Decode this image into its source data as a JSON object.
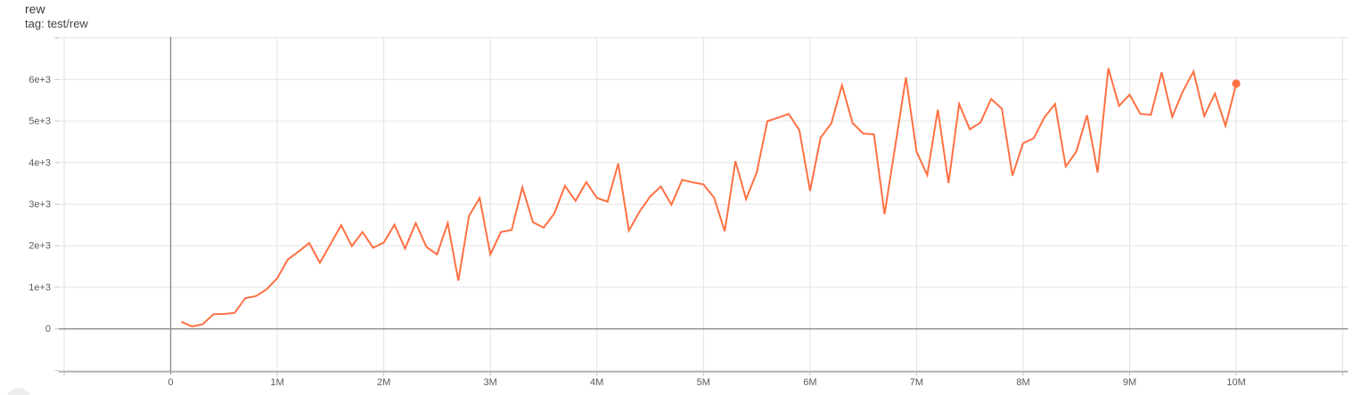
{
  "card": {
    "title": "rew",
    "subtitle": "tag: test/rew"
  },
  "colors": {
    "series": "#ff7043",
    "grid": "#e3e3e3",
    "zero_axis": "#8c8c8c",
    "baseline": "#aeaeae",
    "tick": "#c2c2c2",
    "tick_label": "#5b5b5b"
  },
  "chart_data": {
    "type": "line",
    "title": "rew",
    "tag": "test/rew",
    "legend_position": "none",
    "grid": true,
    "x_axis": {
      "unit": "steps (millions)",
      "range_millions": [
        -1.05,
        11.05
      ],
      "grid_millions": [
        -1,
        0,
        1,
        2,
        3,
        4,
        5,
        6,
        7,
        8,
        9,
        10,
        11
      ],
      "ticks": [
        {
          "value_millions": 0,
          "label": "0"
        },
        {
          "value_millions": 1,
          "label": "1M"
        },
        {
          "value_millions": 2,
          "label": "2M"
        },
        {
          "value_millions": 3,
          "label": "3M"
        },
        {
          "value_millions": 4,
          "label": "4M"
        },
        {
          "value_millions": 5,
          "label": "5M"
        },
        {
          "value_millions": 6,
          "label": "6M"
        },
        {
          "value_millions": 7,
          "label": "7M"
        },
        {
          "value_millions": 8,
          "label": "8M"
        },
        {
          "value_millions": 9,
          "label": "9M"
        },
        {
          "value_millions": 10,
          "label": "10M"
        }
      ]
    },
    "y_axis": {
      "range": [
        -1030,
        7030
      ],
      "grid": [
        -1000,
        0,
        1000,
        2000,
        3000,
        4000,
        5000,
        6000,
        7000
      ],
      "ticks": [
        {
          "value": 0,
          "label": "0"
        },
        {
          "value": 1000,
          "label": "1e+3"
        },
        {
          "value": 2000,
          "label": "2e+3"
        },
        {
          "value": 3000,
          "label": "3e+3"
        },
        {
          "value": 4000,
          "label": "4e+3"
        },
        {
          "value": 5000,
          "label": "5e+3"
        },
        {
          "value": 6000,
          "label": "6e+3"
        }
      ]
    },
    "series": [
      {
        "name": "test/rew",
        "color": "#ff7043",
        "end_dot": true,
        "x_start_millions": 0.1,
        "x_step_millions": 0.1,
        "num_points": 100,
        "values": [
          170,
          60,
          110,
          350,
          360,
          385,
          740,
          790,
          950,
          1220,
          1670,
          1860,
          2065,
          1590,
          2040,
          2495,
          1990,
          2330,
          1950,
          2075,
          2505,
          1935,
          2545,
          1970,
          1790,
          2545,
          1160,
          2720,
          3150,
          1790,
          2330,
          2380,
          3405,
          2565,
          2435,
          2775,
          3440,
          3080,
          3530,
          3150,
          3060,
          3975,
          2365,
          2820,
          3185,
          3425,
          2985,
          3585,
          3525,
          3475,
          3155,
          2350,
          4035,
          3120,
          3765,
          4995,
          5080,
          5170,
          4780,
          3320,
          4600,
          4945,
          5860,
          4950,
          4700,
          4680,
          2760,
          4400,
          6050,
          4265,
          3700,
          5270,
          3510,
          5410,
          4800,
          4965,
          5530,
          5300,
          3690,
          4465,
          4585,
          5090,
          5410,
          3905,
          4265,
          5140,
          3765,
          6270,
          5365,
          5635,
          5170,
          5150,
          6170,
          5100,
          5720,
          6190,
          5120,
          5660,
          4885,
          5900
        ]
      }
    ]
  }
}
